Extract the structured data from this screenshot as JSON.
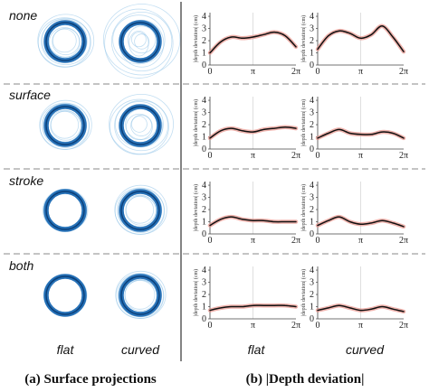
{
  "rows": [
    "none",
    "surface",
    "stroke",
    "both"
  ],
  "columns": [
    "flat",
    "curved"
  ],
  "captions": {
    "left": "(a) Surface projections",
    "right": "(b) |Depth deviation|"
  },
  "panel_ylabel": "|depth deviation| (cm)",
  "colors": {
    "ring": "#1565b0",
    "ring_light": "#90c2e8",
    "mean_line": "#111111",
    "band": "#e8938a",
    "divider": "#888888",
    "axis": "#444444",
    "pi_guide": "#d8d8d8"
  },
  "chart_data": [
    {
      "type": "line",
      "row": "none",
      "column": "flat",
      "xlabel": "",
      "ylabel": "|depth deviation| (cm)",
      "x_ticks": [
        "0",
        "π",
        "2π"
      ],
      "y_ticks": [
        "0",
        "1",
        "2",
        "3",
        "4"
      ],
      "xlim": [
        0,
        6.283
      ],
      "ylim": [
        0,
        4.3
      ],
      "x": [
        0,
        0.785,
        1.571,
        2.356,
        3.142,
        3.927,
        4.712,
        5.498,
        6.283
      ],
      "y": [
        1.0,
        1.9,
        2.3,
        2.2,
        2.3,
        2.5,
        2.7,
        2.4,
        1.5
      ]
    },
    {
      "type": "line",
      "row": "none",
      "column": "curved",
      "xlabel": "",
      "ylabel": "|depth deviation| (cm)",
      "x_ticks": [
        "0",
        "π",
        "2π"
      ],
      "y_ticks": [
        "0",
        "1",
        "2",
        "3",
        "4"
      ],
      "xlim": [
        0,
        6.283
      ],
      "ylim": [
        0,
        4.3
      ],
      "x": [
        0,
        0.785,
        1.571,
        2.356,
        3.142,
        3.927,
        4.712,
        5.498,
        6.283
      ],
      "y": [
        1.3,
        2.4,
        2.8,
        2.6,
        2.2,
        2.5,
        3.2,
        2.3,
        1.1
      ]
    },
    {
      "type": "line",
      "row": "surface",
      "column": "flat",
      "xlabel": "",
      "ylabel": "|depth deviation| (cm)",
      "x_ticks": [
        "0",
        "π",
        "2π"
      ],
      "y_ticks": [
        "0",
        "1",
        "2",
        "3",
        "4"
      ],
      "xlim": [
        0,
        6.283
      ],
      "ylim": [
        0,
        4.3
      ],
      "x": [
        0,
        0.785,
        1.571,
        2.356,
        3.142,
        3.927,
        4.712,
        5.498,
        6.283
      ],
      "y": [
        0.9,
        1.5,
        1.7,
        1.5,
        1.4,
        1.6,
        1.7,
        1.8,
        1.7
      ]
    },
    {
      "type": "line",
      "row": "surface",
      "column": "curved",
      "xlabel": "",
      "ylabel": "|depth deviation| (cm)",
      "x_ticks": [
        "0",
        "π",
        "2π"
      ],
      "y_ticks": [
        "0",
        "1",
        "2",
        "3",
        "4"
      ],
      "xlim": [
        0,
        6.283
      ],
      "ylim": [
        0,
        4.3
      ],
      "x": [
        0,
        0.785,
        1.571,
        2.356,
        3.142,
        3.927,
        4.712,
        5.498,
        6.283
      ],
      "y": [
        0.9,
        1.3,
        1.6,
        1.3,
        1.2,
        1.2,
        1.4,
        1.3,
        0.9
      ]
    },
    {
      "type": "line",
      "row": "stroke",
      "column": "flat",
      "xlabel": "",
      "ylabel": "|depth deviation| (cm)",
      "x_ticks": [
        "0",
        "π",
        "2π"
      ],
      "y_ticks": [
        "0",
        "1",
        "2",
        "3",
        "4"
      ],
      "xlim": [
        0,
        6.283
      ],
      "ylim": [
        0,
        4.3
      ],
      "x": [
        0,
        0.785,
        1.571,
        2.356,
        3.142,
        3.927,
        4.712,
        5.498,
        6.283
      ],
      "y": [
        0.7,
        1.2,
        1.4,
        1.2,
        1.1,
        1.1,
        1.0,
        1.0,
        1.0
      ]
    },
    {
      "type": "line",
      "row": "stroke",
      "column": "curved",
      "xlabel": "",
      "ylabel": "|depth deviation| (cm)",
      "x_ticks": [
        "0",
        "π",
        "2π"
      ],
      "y_ticks": [
        "0",
        "1",
        "2",
        "3",
        "4"
      ],
      "xlim": [
        0,
        6.283
      ],
      "ylim": [
        0,
        4.3
      ],
      "x": [
        0,
        0.785,
        1.571,
        2.356,
        3.142,
        3.927,
        4.712,
        5.498,
        6.283
      ],
      "y": [
        0.7,
        1.1,
        1.4,
        1.0,
        0.8,
        0.9,
        1.1,
        0.9,
        0.6
      ]
    },
    {
      "type": "line",
      "row": "both",
      "column": "flat",
      "xlabel": "",
      "ylabel": "|depth deviation| (cm)",
      "x_ticks": [
        "0",
        "π",
        "2π"
      ],
      "y_ticks": [
        "0",
        "1",
        "2",
        "3",
        "4"
      ],
      "xlim": [
        0,
        6.283
      ],
      "ylim": [
        0,
        4.3
      ],
      "x": [
        0,
        0.785,
        1.571,
        2.356,
        3.142,
        3.927,
        4.712,
        5.498,
        6.283
      ],
      "y": [
        0.7,
        0.9,
        1.0,
        1.0,
        1.1,
        1.1,
        1.1,
        1.1,
        1.0
      ]
    },
    {
      "type": "line",
      "row": "both",
      "column": "curved",
      "xlabel": "",
      "ylabel": "|depth deviation| (cm)",
      "x_ticks": [
        "0",
        "π",
        "2π"
      ],
      "y_ticks": [
        "0",
        "1",
        "2",
        "3",
        "4"
      ],
      "xlim": [
        0,
        6.283
      ],
      "ylim": [
        0,
        4.3
      ],
      "x": [
        0,
        0.785,
        1.571,
        2.356,
        3.142,
        3.927,
        4.712,
        5.498,
        6.283
      ],
      "y": [
        0.7,
        0.9,
        1.1,
        0.9,
        0.7,
        0.8,
        1.0,
        0.8,
        0.6
      ]
    }
  ]
}
